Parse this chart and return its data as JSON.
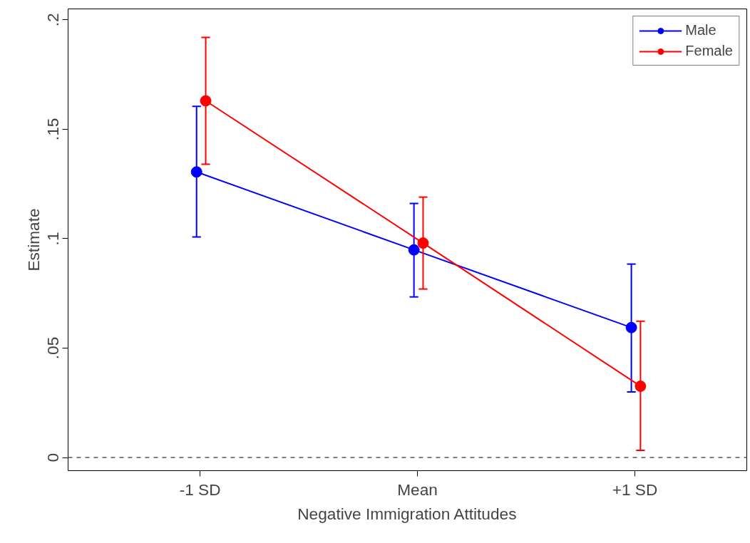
{
  "chart_data": {
    "type": "line",
    "xlabel": "Negative Immigration Attitudes",
    "ylabel": "Estimate",
    "categories": [
      "-1 SD",
      "Mean",
      "+1 SD"
    ],
    "series": [
      {
        "name": "Male",
        "color": "#0000ff",
        "values": [
          0.1305,
          0.0949,
          0.0594
        ],
        "errors": [
          [
            0.1008,
            0.1605
          ],
          [
            0.0734,
            0.1161
          ],
          [
            0.03,
            0.0884
          ]
        ]
      },
      {
        "name": "Female",
        "color": "#ff0000",
        "values": [
          0.163,
          0.098,
          0.0326
        ],
        "errors": [
          [
            0.134,
            0.192
          ],
          [
            0.077,
            0.119
          ],
          [
            0.0033,
            0.0623
          ]
        ]
      }
    ],
    "ylim": [
      -0.006,
      0.205
    ],
    "yticks": [
      {
        "value": 0,
        "label": "0"
      },
      {
        "value": 0.05,
        "label": ".05"
      },
      {
        "value": 0.1,
        "label": ".1"
      },
      {
        "value": 0.15,
        "label": ".15"
      },
      {
        "value": 0.2,
        "label": ".2"
      }
    ],
    "ref_lines": [
      {
        "axis": "y",
        "value": 0,
        "color": "#808080",
        "line_style": "dashed"
      }
    ],
    "grid": false,
    "legend": "top right",
    "marker": "circle",
    "line_style": "solid"
  }
}
